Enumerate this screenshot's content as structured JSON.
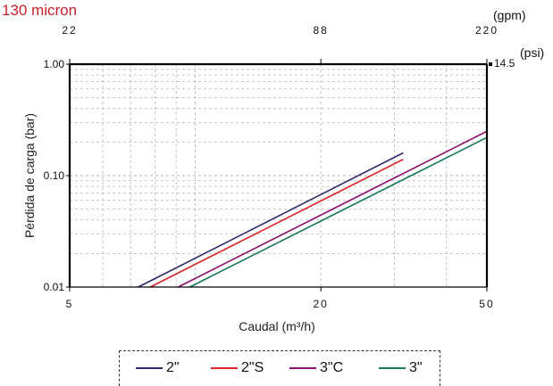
{
  "chart_data": {
    "type": "line",
    "title": "130 micron",
    "xlabel": "Caudal (m³/h)",
    "ylabel": "Pérdida de carga  (bar)",
    "x_scale": "log",
    "y_scale": "log",
    "xlim": [
      5,
      50
    ],
    "ylim": [
      0.01,
      1.0
    ],
    "x_ticks": [
      "5",
      "20",
      "50"
    ],
    "y_ticks": [
      "0.01",
      "0.10",
      "1.00"
    ],
    "top_axis": {
      "unit": "(gpm)",
      "ticks": [
        "22",
        "88",
        "220"
      ]
    },
    "right_axis": {
      "unit": "(psi)",
      "ticks": [
        "14.5"
      ]
    },
    "grid": true,
    "legend_position": "bottom",
    "series": [
      {
        "name": "2\"",
        "color": "#2e2a6e",
        "points": [
          [
            7.3,
            0.01
          ],
          [
            31.5,
            0.16
          ]
        ]
      },
      {
        "name": "2\"S",
        "color": "#d8262c",
        "points": [
          [
            7.8,
            0.01
          ],
          [
            31.5,
            0.14
          ]
        ]
      },
      {
        "name": "3\"C",
        "color": "#8a0f6e",
        "points": [
          [
            9.1,
            0.01
          ],
          [
            50,
            0.25
          ]
        ]
      },
      {
        "name": "3\"",
        "color": "#17765a",
        "points": [
          [
            9.7,
            0.01
          ],
          [
            50,
            0.22
          ]
        ]
      }
    ]
  }
}
